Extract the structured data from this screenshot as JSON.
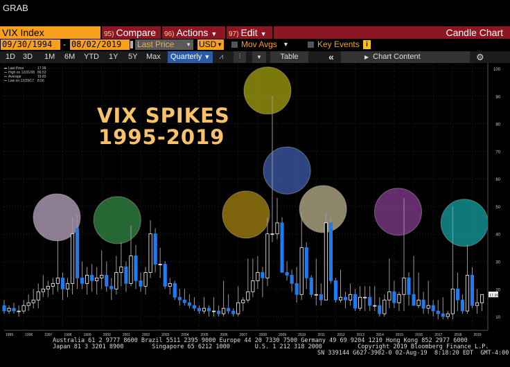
{
  "header": {
    "grab": "GRAB"
  },
  "toolbar": {
    "ticker": "VIX Index",
    "compare_num": "95)",
    "compare": "Compare",
    "actions_num": "96)",
    "actions": "Actions",
    "edit_num": "97)",
    "edit": "Edit",
    "chart_type": "Candle Chart"
  },
  "options": {
    "start_date": "09/30/1994",
    "sep": "-",
    "end_date": "08/02/2019",
    "field": "Last Price",
    "currency": "USD",
    "mov_avgs": "Mov Avgs",
    "key_events": "Key Events",
    "info": "i"
  },
  "periods": {
    "items": [
      "1D",
      "3D",
      "1M",
      "6M",
      "YTD",
      "1Y",
      "5Y",
      "Max"
    ],
    "frequency": "Quarterly",
    "table": "Table",
    "chart_content": "Chart Content",
    "collapse": "«"
  },
  "annotation": {
    "line1": "VIX SPIKES",
    "line2": "1995-2019"
  },
  "legend": {
    "rows": [
      {
        "label": "Last Price",
        "value": "17.99"
      },
      {
        "label": "High on 12/31/08",
        "value": "89.53"
      },
      {
        "label": "Average",
        "value": "19.83"
      },
      {
        "label": "Low on 12/29/17",
        "value": "8.56"
      }
    ]
  },
  "footer": {
    "line1": "Australia 61 2 9777 8600 Brazil 5511 2395 9000 Europe 44 20 7330 7500 Germany 49 69 9204 1210 Hong Kong 852 2977 6000",
    "line2": "Japan 81 3 3201 8900        Singapore 65 6212 1000       U.S. 1 212 318 2000          Copyright 2019 Bloomberg Finance L.P.",
    "line3": "SN 339144 G627-3902-0 02-Aug-19  8:18:20 EDT  GMT-4:00"
  },
  "chart_data": {
    "type": "candlestick",
    "title": "VIX SPIKES 1995-2019",
    "ylim": [
      5,
      102
    ],
    "yticks": [
      10,
      20,
      30,
      40,
      50,
      60,
      70,
      80,
      90,
      100
    ],
    "xlim": [
      1995.0,
      2019.8
    ],
    "xticks": [
      "1995",
      "1996",
      "1997",
      "1998",
      "1999",
      "2000",
      "2001",
      "2002",
      "2003",
      "2004",
      "2005",
      "2006",
      "2007",
      "2008",
      "2009",
      "2010",
      "2011",
      "2012",
      "2013",
      "2014",
      "2015",
      "2016",
      "2017",
      "2018",
      "2019"
    ],
    "last_value": "17.99",
    "colors": {
      "up": "#ffffff",
      "down": "#1e7bf0",
      "wick": "#9a9a9a"
    },
    "candles": [
      {
        "x": 1995.0,
        "o": 14,
        "h": 16,
        "l": 11,
        "c": 12
      },
      {
        "x": 1995.25,
        "o": 12,
        "h": 14,
        "l": 11,
        "c": 13
      },
      {
        "x": 1995.5,
        "o": 13,
        "h": 15,
        "l": 11,
        "c": 12
      },
      {
        "x": 1995.75,
        "o": 12,
        "h": 14,
        "l": 10,
        "c": 12
      },
      {
        "x": 1996.0,
        "o": 12,
        "h": 16,
        "l": 11,
        "c": 14
      },
      {
        "x": 1996.25,
        "o": 14,
        "h": 18,
        "l": 12,
        "c": 15
      },
      {
        "x": 1996.5,
        "o": 15,
        "h": 20,
        "l": 13,
        "c": 16
      },
      {
        "x": 1996.75,
        "o": 16,
        "h": 22,
        "l": 13,
        "c": 19
      },
      {
        "x": 1997.0,
        "o": 19,
        "h": 25,
        "l": 17,
        "c": 20
      },
      {
        "x": 1997.25,
        "o": 20,
        "h": 23,
        "l": 17,
        "c": 21
      },
      {
        "x": 1997.5,
        "o": 21,
        "h": 24,
        "l": 18,
        "c": 22
      },
      {
        "x": 1997.75,
        "o": 22,
        "h": 38,
        "l": 19,
        "c": 24
      },
      {
        "x": 1998.0,
        "o": 24,
        "h": 26,
        "l": 16,
        "c": 20
      },
      {
        "x": 1998.25,
        "o": 20,
        "h": 24,
        "l": 17,
        "c": 22
      },
      {
        "x": 1998.5,
        "o": 22,
        "h": 46,
        "l": 18,
        "c": 40
      },
      {
        "x": 1998.75,
        "o": 42,
        "h": 47,
        "l": 20,
        "c": 24
      },
      {
        "x": 1999.0,
        "o": 24,
        "h": 30,
        "l": 20,
        "c": 22
      },
      {
        "x": 1999.25,
        "o": 22,
        "h": 28,
        "l": 18,
        "c": 25
      },
      {
        "x": 1999.5,
        "o": 25,
        "h": 29,
        "l": 19,
        "c": 23
      },
      {
        "x": 1999.75,
        "o": 23,
        "h": 28,
        "l": 18,
        "c": 24
      },
      {
        "x": 2000.0,
        "o": 24,
        "h": 34,
        "l": 20,
        "c": 25
      },
      {
        "x": 2000.25,
        "o": 25,
        "h": 30,
        "l": 19,
        "c": 21
      },
      {
        "x": 2000.5,
        "o": 21,
        "h": 24,
        "l": 16,
        "c": 20
      },
      {
        "x": 2000.75,
        "o": 20,
        "h": 32,
        "l": 18,
        "c": 26
      },
      {
        "x": 2001.0,
        "o": 26,
        "h": 37,
        "l": 21,
        "c": 28
      },
      {
        "x": 2001.25,
        "o": 28,
        "h": 30,
        "l": 19,
        "c": 22
      },
      {
        "x": 2001.5,
        "o": 22,
        "h": 43,
        "l": 21,
        "c": 32
      },
      {
        "x": 2001.75,
        "o": 32,
        "h": 36,
        "l": 20,
        "c": 23
      },
      {
        "x": 2002.0,
        "o": 23,
        "h": 26,
        "l": 19,
        "c": 21
      },
      {
        "x": 2002.25,
        "o": 21,
        "h": 28,
        "l": 18,
        "c": 26
      },
      {
        "x": 2002.5,
        "o": 26,
        "h": 45,
        "l": 24,
        "c": 40
      },
      {
        "x": 2002.75,
        "o": 40,
        "h": 42,
        "l": 26,
        "c": 29
      },
      {
        "x": 2003.0,
        "o": 29,
        "h": 35,
        "l": 24,
        "c": 29
      },
      {
        "x": 2003.25,
        "o": 29,
        "h": 30,
        "l": 20,
        "c": 21
      },
      {
        "x": 2003.5,
        "o": 21,
        "h": 24,
        "l": 18,
        "c": 22
      },
      {
        "x": 2003.75,
        "o": 22,
        "h": 23,
        "l": 16,
        "c": 17
      },
      {
        "x": 2004.0,
        "o": 17,
        "h": 20,
        "l": 14,
        "c": 16
      },
      {
        "x": 2004.25,
        "o": 16,
        "h": 20,
        "l": 14,
        "c": 15
      },
      {
        "x": 2004.5,
        "o": 15,
        "h": 18,
        "l": 13,
        "c": 14
      },
      {
        "x": 2004.75,
        "o": 14,
        "h": 17,
        "l": 12,
        "c": 13
      },
      {
        "x": 2005.0,
        "o": 13,
        "h": 14,
        "l": 11,
        "c": 12
      },
      {
        "x": 2005.25,
        "o": 12,
        "h": 17,
        "l": 11,
        "c": 13
      },
      {
        "x": 2005.5,
        "o": 13,
        "h": 14,
        "l": 10,
        "c": 12
      },
      {
        "x": 2005.75,
        "o": 12,
        "h": 17,
        "l": 10,
        "c": 12
      },
      {
        "x": 2006.0,
        "o": 12,
        "h": 14,
        "l": 10,
        "c": 11
      },
      {
        "x": 2006.25,
        "o": 11,
        "h": 23,
        "l": 10,
        "c": 13
      },
      {
        "x": 2006.5,
        "o": 13,
        "h": 18,
        "l": 11,
        "c": 12
      },
      {
        "x": 2006.75,
        "o": 12,
        "h": 13,
        "l": 10,
        "c": 11
      },
      {
        "x": 2007.0,
        "o": 11,
        "h": 21,
        "l": 10,
        "c": 15
      },
      {
        "x": 2007.25,
        "o": 15,
        "h": 17,
        "l": 12,
        "c": 16
      },
      {
        "x": 2007.5,
        "o": 16,
        "h": 31,
        "l": 15,
        "c": 19
      },
      {
        "x": 2007.75,
        "o": 19,
        "h": 31,
        "l": 17,
        "c": 23
      },
      {
        "x": 2008.0,
        "o": 23,
        "h": 32,
        "l": 20,
        "c": 26
      },
      {
        "x": 2008.25,
        "o": 26,
        "h": 28,
        "l": 17,
        "c": 24
      },
      {
        "x": 2008.5,
        "o": 24,
        "h": 46,
        "l": 21,
        "c": 40
      },
      {
        "x": 2008.75,
        "o": 40,
        "h": 90,
        "l": 37,
        "c": 40
      },
      {
        "x": 2009.0,
        "o": 40,
        "h": 53,
        "l": 38,
        "c": 44
      },
      {
        "x": 2009.25,
        "o": 44,
        "h": 46,
        "l": 26,
        "c": 26
      },
      {
        "x": 2009.5,
        "o": 26,
        "h": 30,
        "l": 23,
        "c": 25
      },
      {
        "x": 2009.75,
        "o": 25,
        "h": 27,
        "l": 19,
        "c": 22
      },
      {
        "x": 2010.0,
        "o": 22,
        "h": 28,
        "l": 15,
        "c": 18
      },
      {
        "x": 2010.25,
        "o": 18,
        "h": 48,
        "l": 16,
        "c": 35
      },
      {
        "x": 2010.5,
        "o": 35,
        "h": 37,
        "l": 20,
        "c": 24
      },
      {
        "x": 2010.75,
        "o": 24,
        "h": 25,
        "l": 17,
        "c": 18
      },
      {
        "x": 2011.0,
        "o": 18,
        "h": 31,
        "l": 14,
        "c": 18
      },
      {
        "x": 2011.25,
        "o": 18,
        "h": 22,
        "l": 14,
        "c": 16
      },
      {
        "x": 2011.5,
        "o": 16,
        "h": 48,
        "l": 16,
        "c": 44
      },
      {
        "x": 2011.75,
        "o": 44,
        "h": 46,
        "l": 22,
        "c": 23
      },
      {
        "x": 2012.0,
        "o": 23,
        "h": 24,
        "l": 15,
        "c": 16
      },
      {
        "x": 2012.25,
        "o": 16,
        "h": 27,
        "l": 15,
        "c": 17
      },
      {
        "x": 2012.5,
        "o": 17,
        "h": 19,
        "l": 13,
        "c": 16
      },
      {
        "x": 2012.75,
        "o": 16,
        "h": 22,
        "l": 14,
        "c": 18
      },
      {
        "x": 2013.0,
        "o": 18,
        "h": 20,
        "l": 12,
        "c": 13
      },
      {
        "x": 2013.25,
        "o": 13,
        "h": 21,
        "l": 12,
        "c": 17
      },
      {
        "x": 2013.5,
        "o": 17,
        "h": 21,
        "l": 12,
        "c": 17
      },
      {
        "x": 2013.75,
        "o": 17,
        "h": 21,
        "l": 12,
        "c": 14
      },
      {
        "x": 2014.0,
        "o": 14,
        "h": 21,
        "l": 12,
        "c": 14
      },
      {
        "x": 2014.25,
        "o": 14,
        "h": 17,
        "l": 10,
        "c": 11
      },
      {
        "x": 2014.5,
        "o": 11,
        "h": 18,
        "l": 10,
        "c": 16
      },
      {
        "x": 2014.75,
        "o": 16,
        "h": 31,
        "l": 13,
        "c": 19
      },
      {
        "x": 2015.0,
        "o": 19,
        "h": 23,
        "l": 13,
        "c": 15
      },
      {
        "x": 2015.25,
        "o": 15,
        "h": 19,
        "l": 12,
        "c": 18
      },
      {
        "x": 2015.5,
        "o": 18,
        "h": 53,
        "l": 12,
        "c": 24
      },
      {
        "x": 2015.75,
        "o": 24,
        "h": 26,
        "l": 14,
        "c": 18
      },
      {
        "x": 2016.0,
        "o": 18,
        "h": 32,
        "l": 14,
        "c": 14
      },
      {
        "x": 2016.25,
        "o": 14,
        "h": 26,
        "l": 13,
        "c": 16
      },
      {
        "x": 2016.5,
        "o": 16,
        "h": 19,
        "l": 11,
        "c": 13
      },
      {
        "x": 2016.75,
        "o": 13,
        "h": 23,
        "l": 11,
        "c": 14
      },
      {
        "x": 2017.0,
        "o": 14,
        "h": 16,
        "l": 10,
        "c": 12
      },
      {
        "x": 2017.25,
        "o": 12,
        "h": 16,
        "l": 9,
        "c": 11
      },
      {
        "x": 2017.5,
        "o": 11,
        "h": 17,
        "l": 9,
        "c": 10
      },
      {
        "x": 2017.75,
        "o": 10,
        "h": 12,
        "l": 9,
        "c": 11
      },
      {
        "x": 2018.0,
        "o": 11,
        "h": 50,
        "l": 9,
        "c": 20
      },
      {
        "x": 2018.25,
        "o": 20,
        "h": 26,
        "l": 12,
        "c": 16
      },
      {
        "x": 2018.5,
        "o": 16,
        "h": 18,
        "l": 11,
        "c": 12
      },
      {
        "x": 2018.75,
        "o": 12,
        "h": 36,
        "l": 11,
        "c": 25
      },
      {
        "x": 2019.0,
        "o": 25,
        "h": 28,
        "l": 13,
        "c": 14
      },
      {
        "x": 2019.25,
        "o": 14,
        "h": 20,
        "l": 11,
        "c": 15
      },
      {
        "x": 2019.5,
        "o": 15,
        "h": 18,
        "l": 12,
        "c": 18
      }
    ],
    "spike_markers": [
      {
        "x": 1997.7,
        "y": 46,
        "color": "#e3c9ee"
      },
      {
        "x": 2000.8,
        "y": 45,
        "color": "#3fa654"
      },
      {
        "x": 2007.4,
        "y": 47,
        "color": "#c8a014"
      },
      {
        "x": 2008.5,
        "y": 92,
        "color": "#c6c414"
      },
      {
        "x": 2009.5,
        "y": 63,
        "color": "#4a6fd0"
      },
      {
        "x": 2011.35,
        "y": 49,
        "color": "#e3d9a8"
      },
      {
        "x": 2015.2,
        "y": 48,
        "color": "#a24ab0"
      },
      {
        "x": 2018.6,
        "y": 44,
        "color": "#19c4c4"
      }
    ]
  }
}
